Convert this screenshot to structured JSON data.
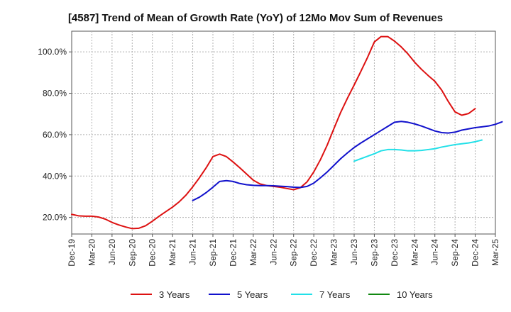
{
  "chart_data": {
    "type": "line",
    "title": "[4587]  Trend of Mean of Growth Rate (YoY) of 12Mo Mov Sum of Revenues",
    "xlabel": "",
    "ylabel": "",
    "ylim": [
      12,
      110
    ],
    "yticks": [
      20,
      40,
      60,
      80,
      100
    ],
    "ytick_labels": [
      "20.0%",
      "40.0%",
      "60.0%",
      "80.0%",
      "100.0%"
    ],
    "xtick_labels": [
      "Dec-19",
      "Mar-20",
      "Jun-20",
      "Sep-20",
      "Dec-20",
      "Mar-21",
      "Jun-21",
      "Sep-21",
      "Dec-21",
      "Mar-22",
      "Jun-22",
      "Sep-22",
      "Dec-22",
      "Mar-23",
      "Jun-23",
      "Sep-23",
      "Dec-23",
      "Mar-24",
      "Jun-24",
      "Sep-24",
      "Dec-24",
      "Mar-25"
    ],
    "x_range_months": [
      0,
      63
    ],
    "grid": true,
    "legend_position": "bottom",
    "series": [
      {
        "name": "3 Years",
        "color": "#dd1111",
        "start_month": 0,
        "values": [
          21.5,
          20.8,
          20.6,
          20.6,
          20.2,
          19.2,
          17.6,
          16.4,
          15.4,
          14.6,
          14.8,
          16.0,
          18.2,
          20.6,
          22.8,
          25.0,
          27.6,
          30.8,
          34.8,
          39.2,
          44.0,
          49.4,
          50.6,
          49.4,
          46.8,
          44.0,
          41.0,
          38.0,
          36.2,
          35.4,
          35.0,
          34.6,
          34.0,
          33.4,
          34.4,
          37.2,
          42.0,
          48.0,
          55.0,
          63.0,
          70.8,
          77.6,
          84.0,
          90.6,
          97.4,
          104.8,
          107.4,
          107.4,
          105.2,
          102.4,
          99.0,
          95.0,
          91.6,
          88.6,
          85.8,
          81.6,
          76.0,
          71.0,
          69.4,
          70.2,
          72.6
        ]
      },
      {
        "name": "5 Years",
        "color": "#1111cc",
        "start_month": 18,
        "values": [
          28.2,
          29.8,
          32.0,
          34.6,
          37.4,
          37.8,
          37.4,
          36.4,
          35.8,
          35.5,
          35.4,
          35.4,
          35.3,
          35.1,
          34.9,
          34.6,
          34.5,
          35.0,
          36.6,
          39.2,
          42.0,
          45.2,
          48.4,
          51.2,
          53.8,
          56.0,
          58.0,
          60.0,
          62.0,
          64.0,
          66.0,
          66.4,
          66.0,
          65.2,
          64.2,
          63.0,
          61.8,
          61.0,
          60.8,
          61.2,
          62.2,
          62.8,
          63.4,
          63.8,
          64.2,
          65.0,
          66.2
        ]
      },
      {
        "name": "7 Years",
        "color": "#22e0e8",
        "start_month": 42,
        "values": [
          47.2,
          48.4,
          49.6,
          50.8,
          52.2,
          52.8,
          52.8,
          52.6,
          52.2,
          52.2,
          52.4,
          52.8,
          53.2,
          54.0,
          54.6,
          55.2,
          55.6,
          56.0,
          56.6,
          57.4
        ]
      },
      {
        "name": "10 Years",
        "color": "#118811",
        "start_month": 0,
        "values": []
      }
    ]
  }
}
